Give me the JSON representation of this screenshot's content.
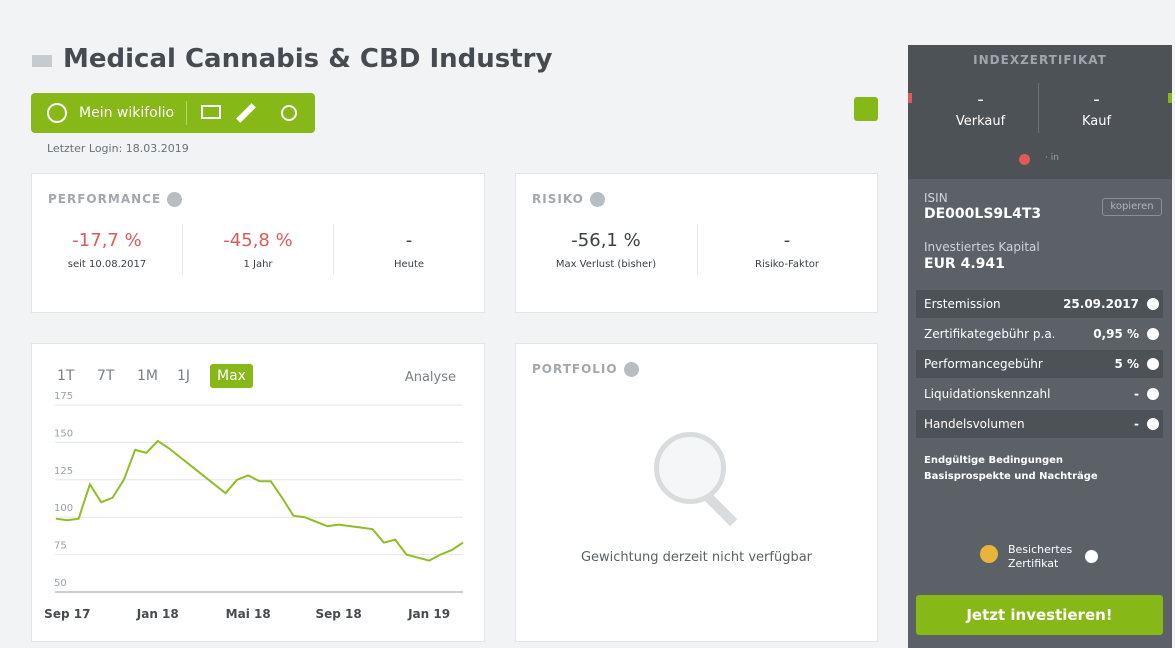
{
  "header": {
    "title": "Medical Cannabis & CBD Industry",
    "button": "Mein wikifolio",
    "last_login": "Letzter Login: 18.03.2019"
  },
  "performance": {
    "title": "PERFORMANCE",
    "items": [
      {
        "value": "-17,7 %",
        "label": "seit 10.08.2017"
      },
      {
        "value": "-45,8 %",
        "label": "1 Jahr"
      },
      {
        "value": "-",
        "label": "Heute"
      }
    ]
  },
  "risk": {
    "title": "RISIKO",
    "items": [
      {
        "value": "-56,1 %",
        "label": "Max Verlust (bisher)"
      },
      {
        "value": "-",
        "label": "Risiko-Faktor"
      }
    ]
  },
  "chart": {
    "type": "line",
    "tabs": [
      "1T",
      "7T",
      "1M",
      "1J",
      "Max"
    ],
    "analysis": "Analyse",
    "color": "#8cbf26",
    "categories": [
      null,
      "Sep 17",
      null,
      null,
      null,
      null,
      null,
      null,
      null,
      "Jan 18",
      null,
      null,
      null,
      null,
      null,
      null,
      null,
      "Mai 18",
      null,
      null,
      null,
      null,
      null,
      null,
      null,
      "Sep 18",
      null,
      null,
      null,
      null,
      null,
      null,
      null,
      "Jan 19",
      null,
      null,
      null
    ],
    "values": [
      99,
      98,
      99,
      122,
      110,
      113,
      125,
      145,
      143,
      151,
      146,
      140,
      134,
      128,
      122,
      116,
      125,
      128,
      124,
      124,
      113,
      101,
      100,
      97,
      94,
      95,
      94,
      93,
      92,
      83,
      85,
      75,
      73,
      71,
      75,
      78,
      83
    ],
    "ylim": [
      50,
      175
    ],
    "yticks": [
      50,
      75,
      100,
      125,
      150,
      175
    ],
    "grid": true
  },
  "portfolio": {
    "title": "PORTFOLIO",
    "message": "Gewichtung derzeit nicht verfügbar"
  },
  "sidebar": {
    "title": "INDEXZERTIFIKAT",
    "sell": {
      "value": "-",
      "label": "Verkauf"
    },
    "buy": {
      "value": "-",
      "label": "Kauf"
    },
    "status": "· in",
    "isin_label": "ISIN",
    "isin": "DE000LS9L4T3",
    "copy": "kopieren",
    "capital_label": "Investiertes Kapital",
    "capital": "EUR 4.941",
    "rows": [
      [
        "Erstemission",
        "25.09.2017"
      ],
      [
        "Zertifikategebühr p.a.",
        "0,95 %"
      ],
      [
        "Performancegebühr",
        "5 %"
      ],
      [
        "Liquidationskennzahl",
        "-"
      ],
      [
        "Handelsvolumen",
        "-"
      ]
    ],
    "links": [
      "Endgültige Bedingungen",
      "Basisprospekte und Nachträge"
    ],
    "badge": "Besichertes Zertifikat",
    "cta": "Jetzt investieren!"
  }
}
